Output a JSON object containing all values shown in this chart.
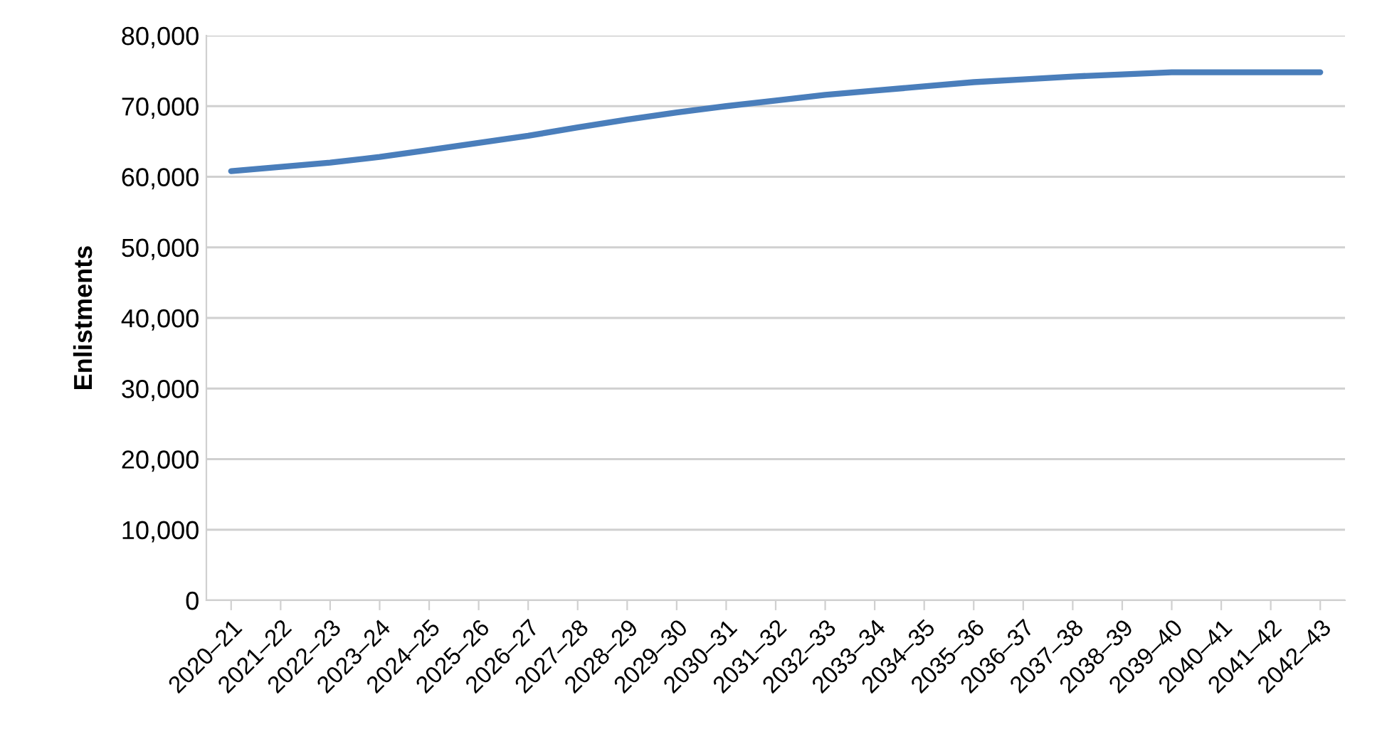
{
  "chart_data": {
    "type": "line",
    "ylabel": "Enlistments",
    "categories": [
      "2020–21",
      "2021–22",
      "2022–23",
      "2023–24",
      "2024–25",
      "2025–26",
      "2026–27",
      "2027–28",
      "2028–29",
      "2029–30",
      "2030–31",
      "2031–32",
      "2032–33",
      "2033–34",
      "2034–35",
      "2035–36",
      "2036–37",
      "2037–38",
      "2038–39",
      "2039–40",
      "2040–41",
      "2041–42",
      "2042–43"
    ],
    "series": [
      {
        "color": "#4a7ebb",
        "values": [
          60800,
          61400,
          62000,
          62800,
          63800,
          64800,
          65800,
          67000,
          68100,
          69100,
          70000,
          70800,
          71600,
          72200,
          72800,
          73400,
          73800,
          74200,
          74500,
          74800,
          74800,
          74800,
          74800
        ]
      }
    ],
    "ylim": [
      0,
      80000
    ],
    "yticks": [
      {
        "value": 0,
        "label": "0"
      },
      {
        "value": 10000,
        "label": "10,000"
      },
      {
        "value": 20000,
        "label": "20,000"
      },
      {
        "value": 30000,
        "label": "30,000"
      },
      {
        "value": 40000,
        "label": "40,000"
      },
      {
        "value": 50000,
        "label": "50,000"
      },
      {
        "value": 60000,
        "label": "60,000"
      },
      {
        "value": 70000,
        "label": "70,000"
      },
      {
        "value": 80000,
        "label": "80,000"
      }
    ],
    "grid": "y",
    "legend": false,
    "marker": "none",
    "line_style": "solid"
  }
}
